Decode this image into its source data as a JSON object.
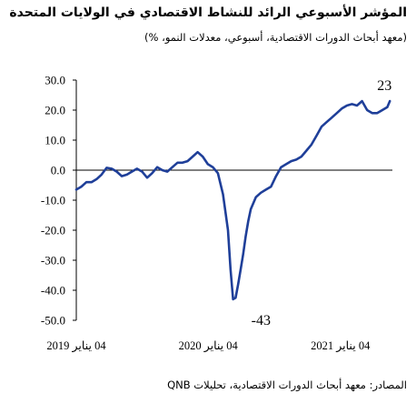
{
  "header": {
    "title": "المؤشر الأسبوعي الرائد للنشاط الاقتصادي في الولايات المتحدة",
    "subtitle": "(معهد أبحاث الدورات الاقتصادية، أسبوعي، معدلات النمو، %)"
  },
  "footer": {
    "source": "المصادر: معهد أبحاث الدورات الاقتصادية، تحليلات QNB"
  },
  "colors": {
    "line": "#1f3f99",
    "axis": "#000000"
  },
  "chart_data": {
    "type": "line",
    "title": "المؤشر الأسبوعي الرائد للنشاط الاقتصادي في الولايات المتحدة",
    "subtitle": "(معهد أبحاث الدورات الاقتصادية، أسبوعي، معدلات النمو، %)",
    "ylim": [
      -50,
      30
    ],
    "y_ticks": [
      30,
      20,
      10,
      0,
      -10,
      -20,
      -30,
      -40,
      -50
    ],
    "y_tick_labels": [
      "30.0",
      "20.0",
      "10.0",
      "0.0",
      "-10.0",
      "-20.0",
      "-30.0",
      "-40.0",
      "-50.0"
    ],
    "x_ticks": [
      {
        "x": "2019-01-04",
        "label": "04 يناير 2019"
      },
      {
        "x": "2020-01-04",
        "label": "04 يناير 2020"
      },
      {
        "x": "2021-01-04",
        "label": "04 يناير 2021"
      }
    ],
    "xlim": [
      "2019-01-04",
      "2021-05-28"
    ],
    "grid": false,
    "annotations": [
      {
        "text": "23",
        "x": "2021-05-21",
        "y": 23
      },
      {
        "text": "-43",
        "x": "2020-04-24",
        "y": -43
      }
    ],
    "series": [
      {
        "color": "#1f3f99",
        "x": [
          "2019-01-04",
          "2019-01-18",
          "2019-02-01",
          "2019-02-15",
          "2019-03-01",
          "2019-03-15",
          "2019-03-29",
          "2019-04-12",
          "2019-04-26",
          "2019-05-10",
          "2019-05-24",
          "2019-06-07",
          "2019-06-21",
          "2019-07-05",
          "2019-07-19",
          "2019-08-02",
          "2019-08-16",
          "2019-08-30",
          "2019-09-13",
          "2019-09-27",
          "2019-10-11",
          "2019-10-25",
          "2019-11-08",
          "2019-11-22",
          "2019-12-06",
          "2019-12-20",
          "2020-01-03",
          "2020-01-17",
          "2020-01-31",
          "2020-02-14",
          "2020-02-28",
          "2020-03-06",
          "2020-03-13",
          "2020-03-20",
          "2020-03-27",
          "2020-04-03",
          "2020-04-10",
          "2020-04-17",
          "2020-04-24",
          "2020-05-01",
          "2020-05-15",
          "2020-05-29",
          "2020-06-12",
          "2020-06-26",
          "2020-07-10",
          "2020-07-24",
          "2020-08-07",
          "2020-08-21",
          "2020-09-04",
          "2020-09-18",
          "2020-10-02",
          "2020-10-16",
          "2020-10-30",
          "2020-11-13",
          "2020-11-27",
          "2020-12-11",
          "2020-12-25",
          "2021-01-08",
          "2021-01-22",
          "2021-02-05",
          "2021-02-19",
          "2021-03-05",
          "2021-03-19",
          "2021-04-02",
          "2021-04-16",
          "2021-04-30",
          "2021-05-14",
          "2021-05-21"
        ],
        "y": [
          -6.5,
          -5.5,
          -4.0,
          -4.0,
          -3.0,
          -1.5,
          0.8,
          0.5,
          -0.5,
          -2.0,
          -1.5,
          -0.5,
          0.5,
          -0.5,
          -2.5,
          -1.0,
          1.0,
          0.0,
          -0.5,
          1.0,
          2.5,
          2.5,
          3.0,
          4.5,
          6.0,
          4.5,
          2.0,
          1.0,
          -1.0,
          -8.0,
          -20.0,
          -33.0,
          -43.0,
          -42.5,
          -38.0,
          -33.0,
          -28.0,
          -22.0,
          -17.0,
          -13.0,
          -9.0,
          -7.5,
          -6.5,
          -5.5,
          -2.0,
          1.0,
          2.0,
          3.0,
          3.5,
          4.5,
          6.5,
          8.5,
          11.5,
          14.5,
          16.0,
          17.5,
          19.0,
          20.5,
          21.5,
          22.0,
          21.5,
          23.0,
          20,
          19,
          19,
          20,
          21,
          23
        ]
      }
    ]
  }
}
